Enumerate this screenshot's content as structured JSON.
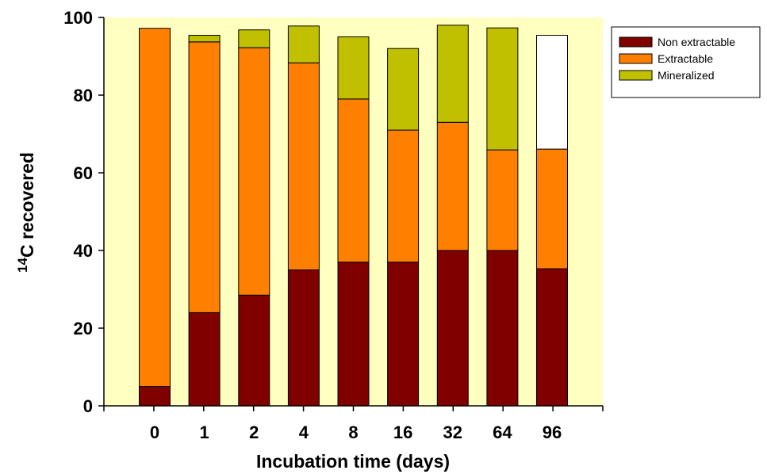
{
  "chart_data": {
    "type": "bar",
    "stacked": true,
    "categories": [
      "0",
      "1",
      "2",
      "4",
      "8",
      "16",
      "32",
      "64",
      "96"
    ],
    "series": [
      {
        "name": "Non extractable",
        "color": "#800000",
        "values": [
          5,
          24,
          28.5,
          35,
          37,
          37,
          40,
          40,
          35.3
        ]
      },
      {
        "name": "Extractable",
        "color": "#ff8000",
        "values": [
          92.2,
          69.7,
          63.7,
          53.3,
          42,
          34,
          33,
          25.9,
          30.8
        ]
      },
      {
        "name": "Mineralized",
        "color": "#c0c000",
        "values": [
          0,
          1.7,
          4.6,
          9.5,
          16,
          21,
          25,
          31.4,
          0
        ]
      }
    ],
    "white_caps": [
      0,
      0,
      0,
      0,
      0,
      0,
      0,
      0,
      29.3
    ],
    "xlabel": "Incubation time (days)",
    "ylabel_sup": "14",
    "ylabel_main": "C recovered",
    "ylim": [
      0,
      100
    ],
    "yticks": [
      0,
      20,
      40,
      60,
      80,
      100
    ],
    "plot_background": "#ffffc0",
    "legend_position": "top-right"
  }
}
